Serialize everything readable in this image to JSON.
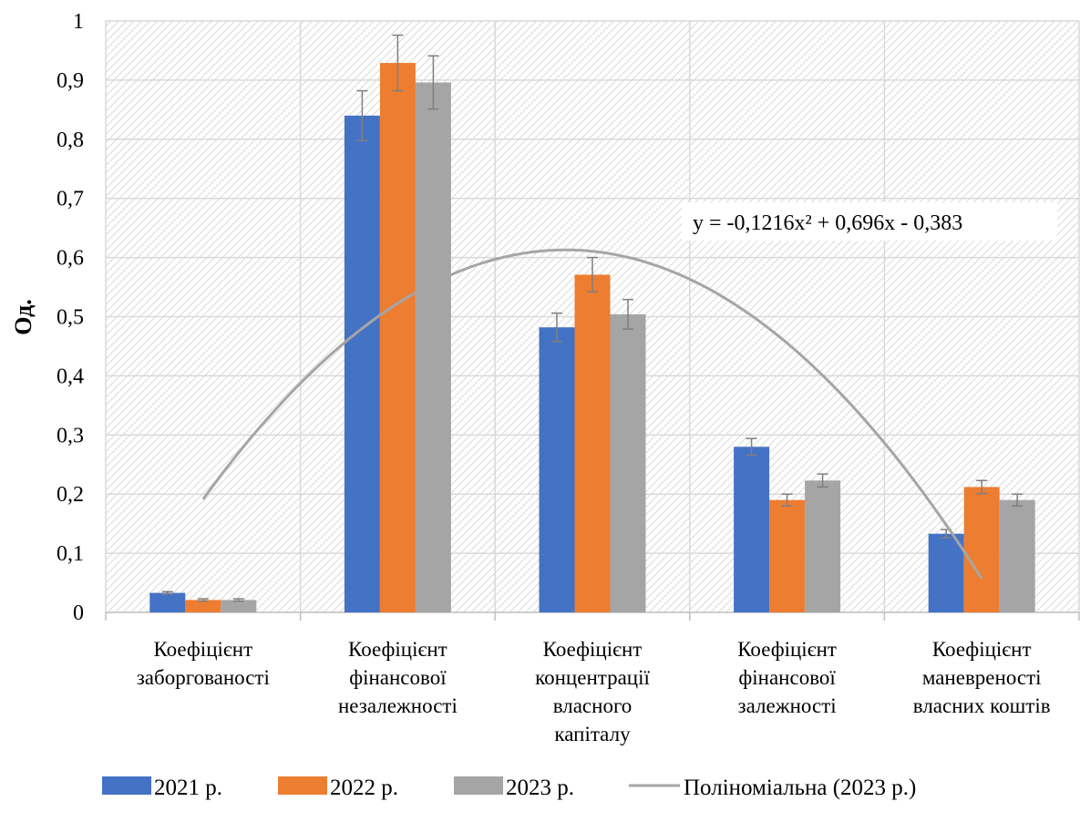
{
  "chart_data": {
    "type": "bar",
    "ylabel": "Од.",
    "ylim": [
      0,
      1
    ],
    "yticks": [
      0,
      0.1,
      0.2,
      0.3,
      0.4,
      0.5,
      0.6,
      0.7,
      0.8,
      0.9,
      1
    ],
    "ytick_labels": [
      "0",
      "0,1",
      "0,2",
      "0,3",
      "0,4",
      "0,5",
      "0,6",
      "0,7",
      "0,8",
      "0,9",
      "1"
    ],
    "grid": true,
    "legend_position": "bottom",
    "categories": [
      [
        "Коефіцієнт",
        "заборгованості"
      ],
      [
        "Коефіцієнт",
        "фінансової",
        "незалежності"
      ],
      [
        "Коефіцієнт",
        "концентрації",
        "власного",
        "капіталу"
      ],
      [
        "Коефіцієнт",
        "фінансової",
        "залежності"
      ],
      [
        "Коефіцієнт",
        "маневреності",
        "власних коштів"
      ]
    ],
    "series": [
      {
        "name": "2021 р.",
        "color": "#4472c4",
        "values": [
          0.033,
          0.84,
          0.482,
          0.28,
          0.133
        ],
        "errors": [
          0.002,
          0.042,
          0.024,
          0.014,
          0.007
        ]
      },
      {
        "name": "2022 р.",
        "color": "#ed7d31",
        "values": [
          0.021,
          0.929,
          0.571,
          0.19,
          0.212
        ],
        "errors": [
          0.002,
          0.047,
          0.029,
          0.01,
          0.011
        ]
      },
      {
        "name": "2023 р.",
        "color": "#a5a5a5",
        "values": [
          0.021,
          0.896,
          0.504,
          0.223,
          0.19
        ],
        "errors": [
          0.002,
          0.045,
          0.025,
          0.011,
          0.01
        ]
      }
    ],
    "trendline": {
      "name": "Поліноміальна (2023 р.)",
      "color": "#a5a5a5",
      "coefficients": {
        "a": -0.1216,
        "b": 0.696,
        "c": -0.383
      },
      "equation": "y = -0,1216x² + 0,696x - 0,383"
    }
  }
}
